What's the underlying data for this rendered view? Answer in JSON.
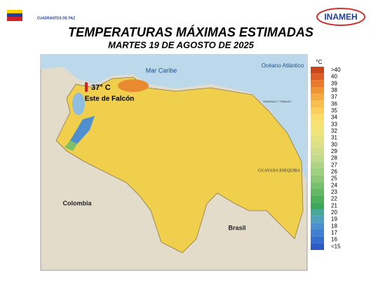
{
  "header": {
    "logo_left": "CUADRANTES DE PAZ",
    "logo_right": "INAMEH",
    "title": "TEMPERATURAS MÁXIMAS ESTIMADAS",
    "subtitle": "MARTES 19 DE AGOSTO DE 2025"
  },
  "map": {
    "sea_north": "Mar Caribe",
    "sea_east": "Océano Atlántico",
    "country_west": "Colombia",
    "country_south": "Brasil",
    "region_east": "GUAYANA ESEQUIBA",
    "island": "TRINIDAD Y TOBAGO",
    "max_temp": "37° C",
    "max_place": "Este de Falcón"
  },
  "legend": {
    "unit": "°C",
    "items": [
      {
        "label": ">40",
        "color": "#c9451a"
      },
      {
        "label": "40",
        "color": "#de5e23"
      },
      {
        "label": "39",
        "color": "#ea7a2c"
      },
      {
        "label": "38",
        "color": "#f09536"
      },
      {
        "label": "37",
        "color": "#f4ab42"
      },
      {
        "label": "36",
        "color": "#f7bf4f"
      },
      {
        "label": "35",
        "color": "#f9cf5a"
      },
      {
        "label": "34",
        "color": "#fadc66"
      },
      {
        "label": "33",
        "color": "#f6e270"
      },
      {
        "label": "32",
        "color": "#efe37a"
      },
      {
        "label": "31",
        "color": "#e6e282"
      },
      {
        "label": "30",
        "color": "#dce089"
      },
      {
        "label": "29",
        "color": "#cedd8b"
      },
      {
        "label": "28",
        "color": "#c0d98a"
      },
      {
        "label": "27",
        "color": "#b0d486"
      },
      {
        "label": "26",
        "color": "#9fcf80"
      },
      {
        "label": "25",
        "color": "#8cc878"
      },
      {
        "label": "24",
        "color": "#77c06f"
      },
      {
        "label": "23",
        "color": "#62b865"
      },
      {
        "label": "22",
        "color": "#4daf5c"
      },
      {
        "label": "21",
        "color": "#3ea85a"
      },
      {
        "label": "20",
        "color": "#4aa89a"
      },
      {
        "label": "19",
        "color": "#4f9fbd"
      },
      {
        "label": "18",
        "color": "#4b8fd0"
      },
      {
        "label": "17",
        "color": "#417fd3"
      },
      {
        "label": "16",
        "color": "#366ecf"
      },
      {
        "label": "<15",
        "color": "#2b5ac4"
      }
    ]
  }
}
